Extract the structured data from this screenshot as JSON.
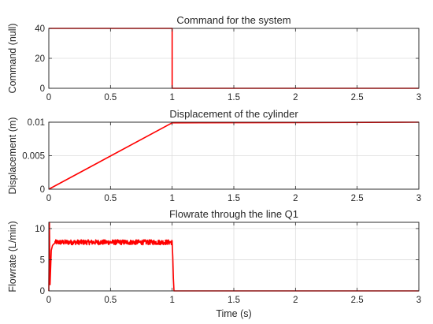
{
  "figure": {
    "background": "#ffffff",
    "xlabel": "Time (s)"
  },
  "chart_data": [
    {
      "type": "line",
      "title": "Command for the system",
      "xlabel": "",
      "ylabel": "Command (null)",
      "xlim": [
        0,
        3
      ],
      "ylim": [
        0,
        40
      ],
      "xticks": [
        0,
        0.5,
        1,
        1.5,
        2,
        2.5,
        3
      ],
      "xtick_labels": [
        "0",
        "0.5",
        "1",
        "1.5",
        "2",
        "2.5",
        "3"
      ],
      "yticks": [
        0,
        20,
        40
      ],
      "ytick_labels": [
        "0",
        "20",
        "40"
      ],
      "grid": true,
      "series": [
        {
          "color": "#ff0000",
          "x": [
            0,
            1,
            1,
            3
          ],
          "y": [
            40,
            40,
            0,
            0
          ]
        }
      ]
    },
    {
      "type": "line",
      "title": "Displacement of the cylinder",
      "xlabel": "",
      "ylabel": "Displacement (m)",
      "xlim": [
        0,
        3
      ],
      "ylim": [
        0,
        0.01
      ],
      "xticks": [
        0,
        0.5,
        1,
        1.5,
        2,
        2.5,
        3
      ],
      "xtick_labels": [
        "0",
        "0.5",
        "1",
        "1.5",
        "2",
        "2.5",
        "3"
      ],
      "yticks": [
        0,
        0.005,
        0.01
      ],
      "ytick_labels": [
        "0",
        "0.005",
        "0.01"
      ],
      "grid": true,
      "series": [
        {
          "color": "#ff0000",
          "x": [
            0,
            1,
            3
          ],
          "y": [
            0,
            0.0099,
            0.01
          ]
        }
      ]
    },
    {
      "type": "line",
      "title": "Flowrate through the line Q1",
      "xlabel": "Time (s)",
      "ylabel": "Flowrate (L/min)",
      "xlim": [
        0,
        3
      ],
      "ylim": [
        0,
        11
      ],
      "xticks": [
        0,
        0.5,
        1,
        1.5,
        2,
        2.5,
        3
      ],
      "xtick_labels": [
        "0",
        "0.5",
        "1",
        "1.5",
        "2",
        "2.5",
        "3"
      ],
      "yticks": [
        0,
        5,
        10
      ],
      "ytick_labels": [
        "0",
        "5",
        "10"
      ],
      "grid": true,
      "series": [
        {
          "color": "#ff0000",
          "x": [
            0,
            0.005,
            0.01,
            0.02,
            0.03,
            0.05,
            0.08,
            1.0,
            1.005,
            1.01,
            1.015,
            3
          ],
          "y": [
            0,
            11,
            1.0,
            6.5,
            7.3,
            7.7,
            7.8,
            7.8,
            5.5,
            2.0,
            0,
            0
          ],
          "noise_range": [
            0.05,
            1.0
          ],
          "noise_band": [
            7.4,
            8.2
          ]
        }
      ]
    }
  ]
}
